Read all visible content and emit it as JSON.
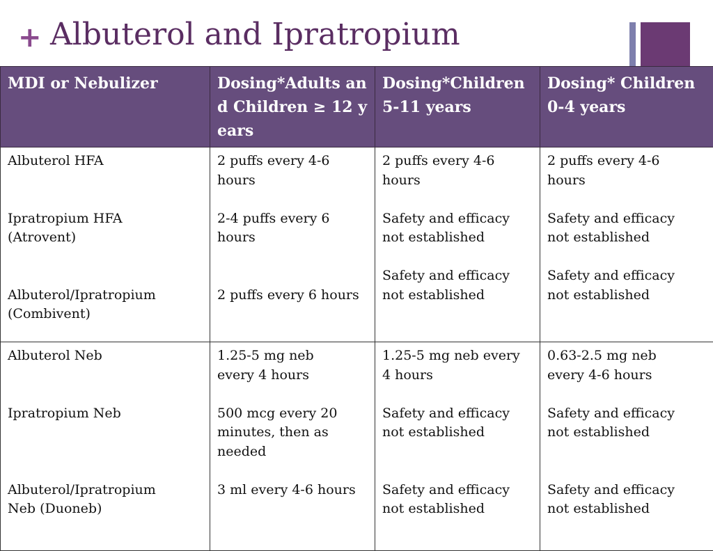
{
  "slide": {
    "plus": "+",
    "title": "Albuterol and Ipratropium"
  },
  "table": {
    "headers": [
      "MDI  or Nebulizer",
      "Dosing*Adults and Children ≥ 12 years",
      "Dosing*Children 5-11 years",
      "Dosing* Children 0-4 years"
    ],
    "rows": [
      [
        [
          "Albuterol HFA",
          "",
          "",
          "Ipratropium HFA",
          "(Atrovent)",
          "",
          "",
          "Albuterol/Ipratropium",
          "(Combivent)"
        ],
        [
          "2 puffs every 4-6",
          "hours",
          "",
          "2-4 puffs every 6",
          "hours",
          "",
          "",
          "2 puffs every 6 hours"
        ],
        [
          "2 puffs every 4-6",
          "hours",
          "",
          "Safety and efficacy",
          "not established",
          "",
          "Safety and efficacy",
          "not established"
        ],
        [
          "2 puffs every 4-6",
          "hours",
          "",
          "Safety and efficacy",
          "not established",
          "",
          "Safety and efficacy",
          "not established"
        ]
      ],
      [
        [
          "Albuterol Neb",
          "",
          "",
          "Ipratropium Neb",
          "",
          "",
          "",
          "Albuterol/Ipratropium",
          "Neb (Duoneb)"
        ],
        [
          "1.25-5 mg neb",
          "every  4 hours",
          "",
          "500 mcg every 20",
          "minutes, then as",
          "needed",
          "",
          "3 ml every 4-6 hours"
        ],
        [
          "1.25-5 mg neb every",
          "4 hours",
          "",
          "Safety and efficacy",
          "not established",
          "",
          "",
          "Safety and efficacy",
          "not established"
        ],
        [
          "0.63-2.5 mg neb",
          "every 4-6 hours",
          "",
          "Safety and efficacy",
          "not established",
          "",
          "",
          "Safety and efficacy",
          "not established"
        ]
      ]
    ]
  },
  "colors": {
    "title": "#5a2d62",
    "plus": "#8a4a8e",
    "header_bg": "#664d7d",
    "accent_square": "#6b3a73",
    "accent_bar": "#7e7fad"
  }
}
